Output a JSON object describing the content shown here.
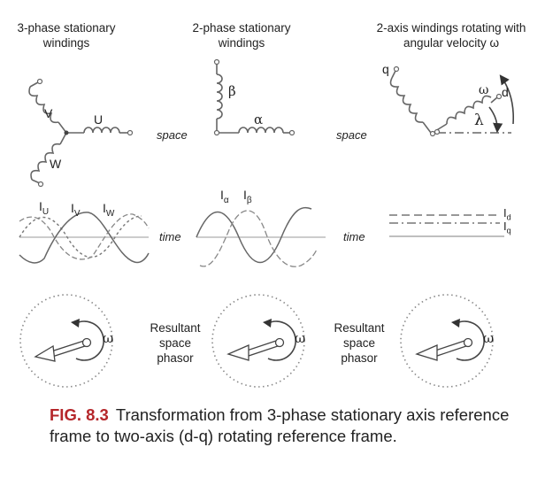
{
  "headers": {
    "col1": "3-phase stationary windings",
    "col2": "2-phase stationary windings",
    "col3": "2-axis windings rotating with angular velocity ω"
  },
  "winding_labels": {
    "u": "U",
    "v": "V",
    "w": "W",
    "alpha": "α",
    "beta": "β",
    "q": "q",
    "d": "d",
    "omega": "ω",
    "lambda": "λ"
  },
  "space_label": "space",
  "time_label": "time",
  "current_labels": {
    "iu": "I",
    "iu_sub": "U",
    "iv": "I",
    "iv_sub": "V",
    "iw": "I",
    "iw_sub": "W",
    "ialpha": "I",
    "ialpha_sub": "α",
    "ibeta": "I",
    "ibeta_sub": "β",
    "id": "I",
    "id_sub": "d",
    "iq": "I",
    "iq_sub": "q"
  },
  "phasor": {
    "omega": "ω",
    "resultant_label": "Resultant space phasor"
  },
  "caption": {
    "number": "FIG. 8.3",
    "text": "Transformation from 3-phase stationary axis reference frame to two-axis (d-q) rotating reference frame."
  },
  "colors": {
    "ink": "#555555",
    "caption_accent": "#b5262a"
  }
}
